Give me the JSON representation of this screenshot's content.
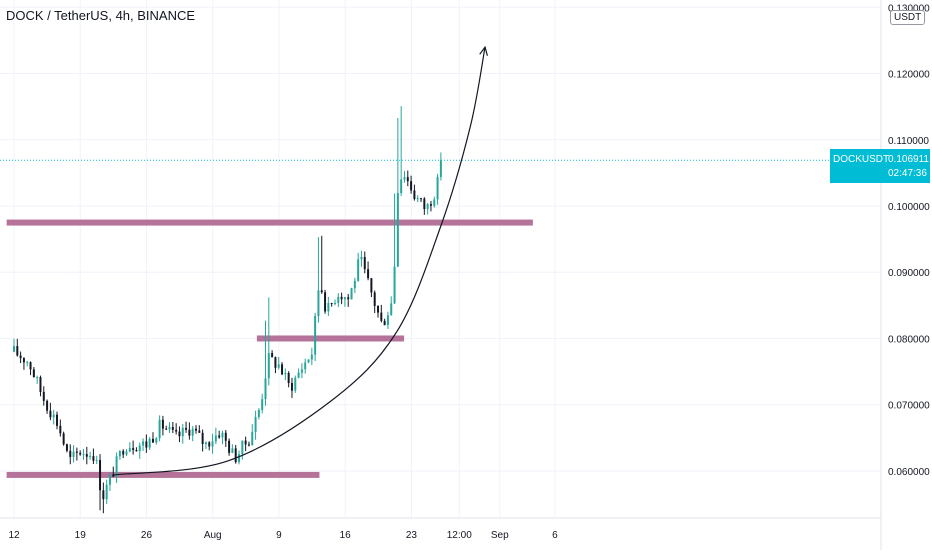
{
  "chart_data": {
    "type": "candlestick",
    "title": "DOCK / TetherUS, 4h, BINANCE",
    "currency": "USDT",
    "symbol": "DOCKUSDT",
    "last_price": "0.106911",
    "countdown": "02:47:36",
    "ylim": [
      0.0535,
      0.1305
    ],
    "y_ticks": [
      {
        "value": 0.06,
        "label": "0.060000"
      },
      {
        "value": 0.07,
        "label": "0.070000"
      },
      {
        "value": 0.08,
        "label": "0.080000"
      },
      {
        "value": 0.09,
        "label": "0.090000"
      },
      {
        "value": 0.1,
        "label": "0.100000"
      },
      {
        "value": 0.11,
        "label": "0.110000"
      },
      {
        "value": 0.12,
        "label": "0.120000"
      },
      {
        "value": 0.13,
        "label": "0.130000"
      }
    ],
    "x_ticks": [
      {
        "pos": 0.0,
        "label": "12"
      },
      {
        "pos": 0.09,
        "label": "19"
      },
      {
        "pos": 0.18,
        "label": "26"
      },
      {
        "pos": 0.27,
        "label": "Aug"
      },
      {
        "pos": 0.36,
        "label": "9"
      },
      {
        "pos": 0.45,
        "label": "16"
      },
      {
        "pos": 0.54,
        "label": "23"
      },
      {
        "pos": 0.605,
        "label": "12:00"
      },
      {
        "pos": 0.66,
        "label": "Sep"
      },
      {
        "pos": 0.735,
        "label": "6"
      }
    ],
    "support_lines": [
      {
        "value": 0.0594,
        "from": -0.01,
        "to": 0.415
      },
      {
        "value": 0.08,
        "from": 0.33,
        "to": 0.53
      },
      {
        "value": 0.0975,
        "from": -0.01,
        "to": 0.705
      }
    ],
    "curve_arrow": [
      {
        "t": 0.135,
        "v": 0.0594
      },
      {
        "t": 0.29,
        "v": 0.0615
      },
      {
        "t": 0.43,
        "v": 0.0705
      },
      {
        "t": 0.52,
        "v": 0.081
      },
      {
        "t": 0.58,
        "v": 0.097
      },
      {
        "t": 0.62,
        "v": 0.112
      },
      {
        "t": 0.64,
        "v": 0.124
      }
    ],
    "price_anchors": [
      {
        "t": 0.0,
        "v": 0.078
      },
      {
        "t": 0.02,
        "v": 0.0765
      },
      {
        "t": 0.04,
        "v": 0.071
      },
      {
        "t": 0.06,
        "v": 0.067
      },
      {
        "t": 0.075,
        "v": 0.0615
      },
      {
        "t": 0.09,
        "v": 0.063
      },
      {
        "t": 0.11,
        "v": 0.0625
      },
      {
        "t": 0.12,
        "v": 0.056
      },
      {
        "t": 0.135,
        "v": 0.06
      },
      {
        "t": 0.15,
        "v": 0.064
      },
      {
        "t": 0.18,
        "v": 0.064
      },
      {
        "t": 0.2,
        "v": 0.067
      },
      {
        "t": 0.22,
        "v": 0.065
      },
      {
        "t": 0.24,
        "v": 0.0665
      },
      {
        "t": 0.26,
        "v": 0.064
      },
      {
        "t": 0.28,
        "v": 0.066
      },
      {
        "t": 0.3,
        "v": 0.062
      },
      {
        "t": 0.32,
        "v": 0.065
      },
      {
        "t": 0.335,
        "v": 0.07
      },
      {
        "t": 0.345,
        "v": 0.077
      },
      {
        "t": 0.36,
        "v": 0.076
      },
      {
        "t": 0.375,
        "v": 0.0725
      },
      {
        "t": 0.39,
        "v": 0.0755
      },
      {
        "t": 0.405,
        "v": 0.078
      },
      {
        "t": 0.415,
        "v": 0.089
      },
      {
        "t": 0.425,
        "v": 0.084
      },
      {
        "t": 0.44,
        "v": 0.087
      },
      {
        "t": 0.455,
        "v": 0.086
      },
      {
        "t": 0.47,
        "v": 0.092
      },
      {
        "t": 0.485,
        "v": 0.087
      },
      {
        "t": 0.5,
        "v": 0.082
      },
      {
        "t": 0.515,
        "v": 0.086
      },
      {
        "t": 0.522,
        "v": 0.104
      },
      {
        "t": 0.53,
        "v": 0.105
      },
      {
        "t": 0.545,
        "v": 0.1015
      },
      {
        "t": 0.56,
        "v": 0.0995
      },
      {
        "t": 0.575,
        "v": 0.103
      },
      {
        "t": 0.58,
        "v": 0.1069
      }
    ],
    "candle_count": 130,
    "up_color": "#26a69a",
    "down_color": "#131722",
    "support_color": "#b5739a",
    "last_price_color": "#00bcd4"
  }
}
